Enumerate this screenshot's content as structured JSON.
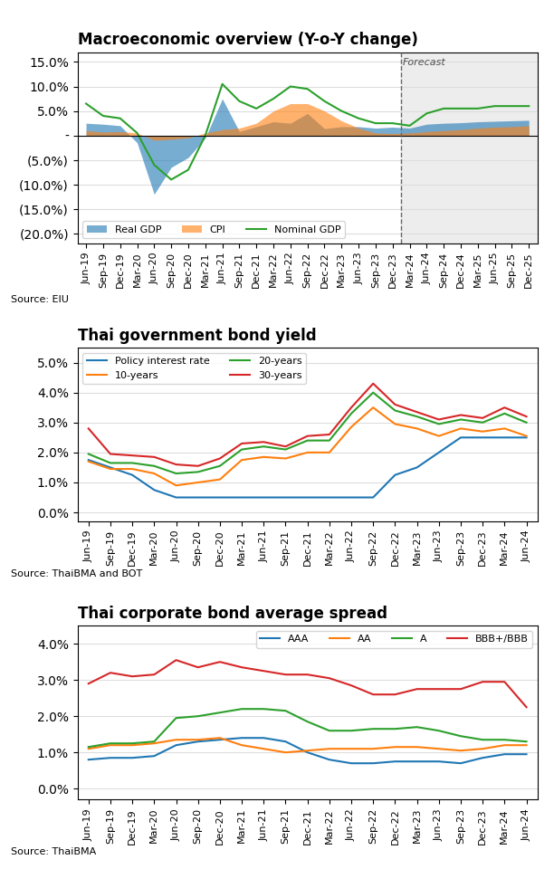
{
  "chart_data": [
    {
      "type": "line",
      "title": "Macroeconomic overview (Y-o-Y change)",
      "categories": [
        "Jun-19",
        "Sep-19",
        "Dec-19",
        "Mar-20",
        "Jun-20",
        "Sep-20",
        "Dec-20",
        "Mar-21",
        "Jun-21",
        "Sep-21",
        "Dec-21",
        "Mar-22",
        "Jun-22",
        "Sep-22",
        "Dec-22",
        "Mar-23",
        "Jun-23",
        "Sep-23",
        "Dec-23",
        "Mar-24",
        "Jun-24",
        "Sep-24",
        "Dec-24",
        "Mar-25",
        "Jun-25",
        "Sep-25",
        "Dec-25"
      ],
      "series": [
        {
          "name": "Real GDP",
          "type": "area",
          "values": [
            2.5,
            2.3,
            2.0,
            -1.5,
            -12.0,
            -6.5,
            -4.5,
            -0.5,
            7.5,
            0.8,
            1.8,
            2.8,
            2.5,
            4.5,
            1.4,
            1.8,
            1.8,
            1.5,
            1.7,
            1.5,
            2.3,
            2.5,
            2.6,
            2.8,
            2.9,
            3.0,
            3.1
          ]
        },
        {
          "name": "CPI",
          "type": "area",
          "values": [
            1.0,
            0.7,
            0.8,
            0.5,
            -1.0,
            -0.8,
            -0.5,
            0.5,
            1.2,
            1.5,
            2.5,
            5.0,
            6.5,
            6.5,
            5.0,
            3.0,
            1.5,
            0.5,
            0.4,
            0.5,
            0.8,
            1.0,
            1.2,
            1.5,
            1.7,
            1.8,
            2.0
          ]
        },
        {
          "name": "Nominal GDP",
          "type": "line",
          "values": [
            6.5,
            4.0,
            3.5,
            0.5,
            -6.0,
            -9.0,
            -7.0,
            0.0,
            10.5,
            7.0,
            5.5,
            7.5,
            10.0,
            9.5,
            7.0,
            5.0,
            3.5,
            2.5,
            2.5,
            2.0,
            4.5,
            5.5,
            5.5,
            5.5,
            6.0,
            6.0,
            6.0
          ]
        }
      ],
      "ylim": [
        -22,
        17
      ],
      "yticks": [
        {
          "value": 15,
          "label": "15.0%"
        },
        {
          "value": 10,
          "label": "10.0%"
        },
        {
          "value": 5,
          "label": "5.0%"
        },
        {
          "value": 0,
          "label": "-"
        },
        {
          "value": -5,
          "label": "(5.0%)"
        },
        {
          "value": -10,
          "label": "(10.0%)"
        },
        {
          "value": -15,
          "label": "(15.0%)"
        },
        {
          "value": -20,
          "label": "(20.0%)"
        }
      ],
      "grid": true,
      "legend": "lower left",
      "annotations": [
        {
          "text": "Forecast",
          "x": "Mar-24"
        },
        {
          "text": "Source: EIU"
        }
      ]
    },
    {
      "type": "line",
      "title": "Thai government bond yield",
      "categories": [
        "Jun-19",
        "Sep-19",
        "Dec-19",
        "Mar-20",
        "Jun-20",
        "Sep-20",
        "Dec-20",
        "Mar-21",
        "Jun-21",
        "Sep-21",
        "Dec-21",
        "Mar-22",
        "Jun-22",
        "Sep-22",
        "Dec-22",
        "Mar-23",
        "Jun-23",
        "Sep-23",
        "Dec-23",
        "Mar-24",
        "Jun-24"
      ],
      "series": [
        {
          "name": "Policy interest rate",
          "values": [
            1.75,
            1.5,
            1.25,
            0.75,
            0.5,
            0.5,
            0.5,
            0.5,
            0.5,
            0.5,
            0.5,
            0.5,
            0.5,
            0.5,
            1.25,
            1.5,
            2.0,
            2.5,
            2.5,
            2.5,
            2.5
          ]
        },
        {
          "name": "10-years",
          "values": [
            1.7,
            1.45,
            1.45,
            1.3,
            0.9,
            1.0,
            1.1,
            1.75,
            1.85,
            1.8,
            2.0,
            2.0,
            2.85,
            3.5,
            2.95,
            2.8,
            2.55,
            2.8,
            2.7,
            2.8,
            2.55
          ]
        },
        {
          "name": "20-years",
          "values": [
            1.95,
            1.65,
            1.65,
            1.55,
            1.3,
            1.35,
            1.55,
            2.1,
            2.2,
            2.1,
            2.4,
            2.4,
            3.3,
            4.0,
            3.4,
            3.2,
            2.95,
            3.1,
            3.0,
            3.3,
            3.0
          ]
        },
        {
          "name": "30-years",
          "values": [
            2.8,
            1.95,
            1.9,
            1.85,
            1.6,
            1.55,
            1.8,
            2.3,
            2.35,
            2.2,
            2.55,
            2.6,
            3.5,
            4.3,
            3.6,
            3.35,
            3.1,
            3.25,
            3.15,
            3.5,
            3.2
          ]
        }
      ],
      "ylim": [
        -0.3,
        5.5
      ],
      "yticks": [
        {
          "value": 0,
          "label": "0.0%"
        },
        {
          "value": 1,
          "label": "1.0%"
        },
        {
          "value": 2,
          "label": "2.0%"
        },
        {
          "value": 3,
          "label": "3.0%"
        },
        {
          "value": 4,
          "label": "4.0%"
        },
        {
          "value": 5,
          "label": "5.0%"
        }
      ],
      "grid": true,
      "legend": "upper left",
      "annotations": [
        {
          "text": "Source: ThaiBMA and BOT"
        }
      ]
    },
    {
      "type": "line",
      "title": "Thai corporate bond average spread",
      "categories": [
        "Jun-19",
        "Sep-19",
        "Dec-19",
        "Mar-20",
        "Jun-20",
        "Sep-20",
        "Dec-20",
        "Mar-21",
        "Jun-21",
        "Sep-21",
        "Dec-21",
        "Mar-22",
        "Jun-22",
        "Sep-22",
        "Dec-22",
        "Mar-23",
        "Jun-23",
        "Sep-23",
        "Dec-23",
        "Mar-24",
        "Jun-24"
      ],
      "series": [
        {
          "name": "AAA",
          "values": [
            0.8,
            0.85,
            0.85,
            0.9,
            1.2,
            1.3,
            1.35,
            1.4,
            1.4,
            1.3,
            1.0,
            0.8,
            0.7,
            0.7,
            0.75,
            0.75,
            0.75,
            0.7,
            0.85,
            0.95,
            0.95
          ]
        },
        {
          "name": "AA",
          "values": [
            1.1,
            1.2,
            1.2,
            1.25,
            1.35,
            1.35,
            1.4,
            1.2,
            1.1,
            1.0,
            1.05,
            1.1,
            1.1,
            1.1,
            1.15,
            1.15,
            1.1,
            1.05,
            1.1,
            1.2,
            1.2
          ]
        },
        {
          "name": "A",
          "values": [
            1.15,
            1.25,
            1.25,
            1.3,
            1.95,
            2.0,
            2.1,
            2.2,
            2.2,
            2.15,
            1.85,
            1.6,
            1.6,
            1.65,
            1.65,
            1.7,
            1.6,
            1.45,
            1.35,
            1.35,
            1.3
          ]
        },
        {
          "name": "BBB+/BBB",
          "values": [
            2.9,
            3.2,
            3.1,
            3.15,
            3.55,
            3.35,
            3.5,
            3.35,
            3.25,
            3.15,
            3.15,
            3.05,
            2.85,
            2.6,
            2.6,
            2.75,
            2.75,
            2.75,
            2.95,
            2.95,
            2.25
          ]
        }
      ],
      "ylim": [
        -0.3,
        4.5
      ],
      "yticks": [
        {
          "value": 0,
          "label": "0.0%"
        },
        {
          "value": 1,
          "label": "1.0%"
        },
        {
          "value": 2,
          "label": "2.0%"
        },
        {
          "value": 3,
          "label": "3.0%"
        },
        {
          "value": 4,
          "label": "4.0%"
        }
      ],
      "grid": true,
      "legend": "upper right",
      "annotations": [
        {
          "text": "Source: ThaiBMA"
        }
      ]
    }
  ]
}
